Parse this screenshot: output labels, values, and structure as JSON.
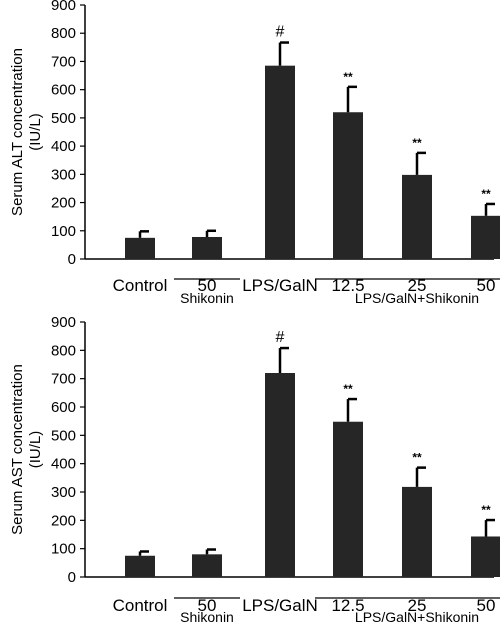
{
  "chart_data": [
    {
      "type": "bar",
      "ylabel_line1": "Serum ALT concentration",
      "ylabel_line2": "(IU/L)",
      "ylim": [
        0,
        900
      ],
      "yticks": [
        0,
        100,
        200,
        300,
        400,
        500,
        600,
        700,
        800,
        900
      ],
      "categories": [
        "Control",
        "50",
        "LPS/GalN",
        "12.5",
        "25",
        "50"
      ],
      "values": [
        75,
        78,
        685,
        520,
        298,
        153
      ],
      "errors": [
        23,
        22,
        82,
        90,
        78,
        42
      ],
      "annotations": [
        "",
        "",
        "#",
        "**",
        "**",
        "**"
      ],
      "group_labels": [
        {
          "text": "Shikonin",
          "from": 1,
          "to": 1
        },
        {
          "text": "LPS/GalN+Shikonin",
          "from": 3,
          "to": 5
        }
      ],
      "grid": false,
      "bar_color": "#262626"
    },
    {
      "type": "bar",
      "ylabel_line1": "Serum AST concentration",
      "ylabel_line2": "(IU/L)",
      "ylim": [
        0,
        900
      ],
      "yticks": [
        0,
        100,
        200,
        300,
        400,
        500,
        600,
        700,
        800,
        900
      ],
      "categories": [
        "Control",
        "50",
        "LPS/GalN",
        "12.5",
        "25",
        "50"
      ],
      "values": [
        75,
        80,
        720,
        548,
        318,
        143
      ],
      "errors": [
        15,
        17,
        88,
        80,
        68,
        58
      ],
      "annotations": [
        "",
        "",
        "#",
        "**",
        "**",
        "**"
      ],
      "group_labels": [
        {
          "text": "Shikonin",
          "from": 1,
          "to": 1
        },
        {
          "text": "LPS/GalN+Shikonin",
          "from": 3,
          "to": 5
        }
      ],
      "grid": false,
      "bar_color": "#262626"
    }
  ]
}
